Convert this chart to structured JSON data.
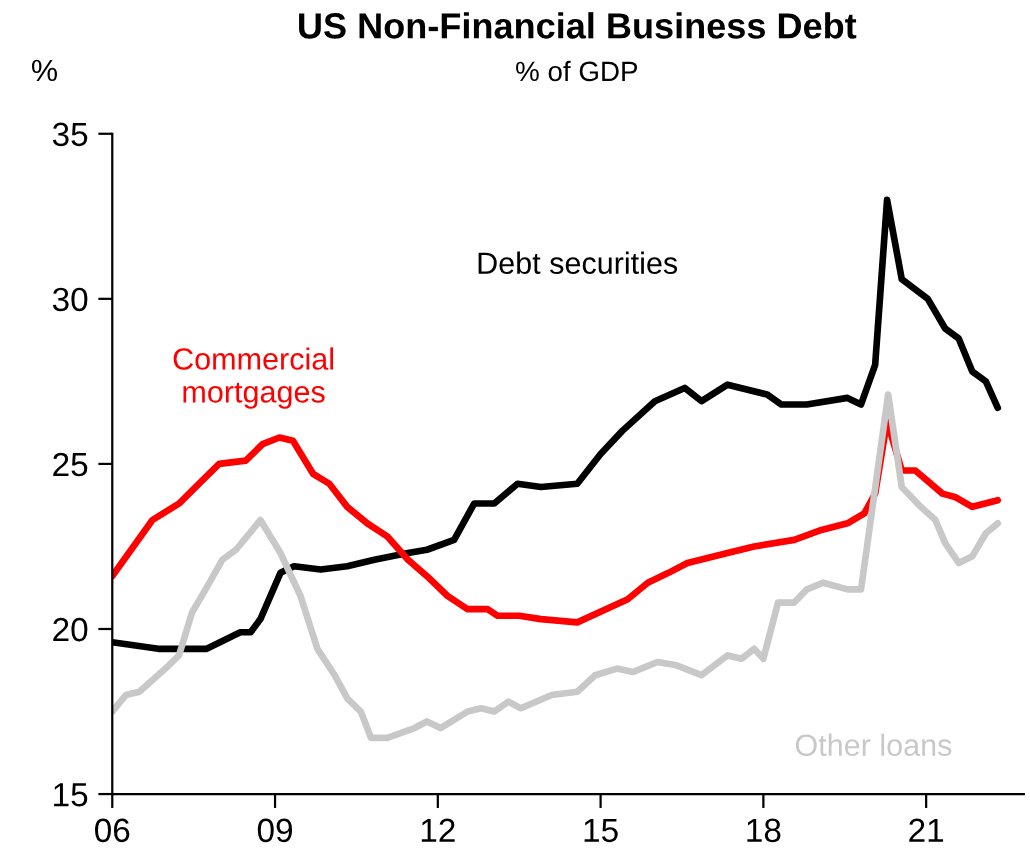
{
  "chart_data": {
    "type": "line",
    "title": "US Non-Financial Business Debt",
    "subtitle": "% of GDP",
    "ylabel": "%",
    "xlim": [
      2006,
      2022.8
    ],
    "xticks": [
      {
        "value": 2006,
        "label": "06"
      },
      {
        "value": 2009,
        "label": "09"
      },
      {
        "value": 2012,
        "label": "12"
      },
      {
        "value": 2015,
        "label": "15"
      },
      {
        "value": 2018,
        "label": "18"
      },
      {
        "value": 2021,
        "label": "21"
      }
    ],
    "ylim": [
      15,
      35
    ],
    "yticks": [
      15,
      20,
      25,
      30,
      35
    ],
    "grid": false,
    "legend": false,
    "series": [
      {
        "name": "Debt securities",
        "color": "#000000",
        "x": [
          2006.0,
          2006.85,
          2007.74,
          2008.36,
          2008.55,
          2008.73,
          2009.1,
          2009.35,
          2009.84,
          2010.33,
          2010.83,
          2011.45,
          2011.8,
          2012.3,
          2012.67,
          2013.04,
          2013.47,
          2013.9,
          2014.57,
          2015.0,
          2015.4,
          2016.0,
          2016.55,
          2016.86,
          2017.34,
          2018.07,
          2018.33,
          2018.8,
          2019.55,
          2019.8,
          2020.06,
          2020.28,
          2020.55,
          2021.03,
          2021.35,
          2021.6,
          2021.85,
          2022.1,
          2022.32
        ],
        "values": [
          19.6,
          19.4,
          19.4,
          19.9,
          19.9,
          20.3,
          21.7,
          21.9,
          21.8,
          21.9,
          22.1,
          22.3,
          22.4,
          22.7,
          23.8,
          23.8,
          24.4,
          24.3,
          24.4,
          25.3,
          26.0,
          26.9,
          27.3,
          26.9,
          27.4,
          27.1,
          26.8,
          26.8,
          27.0,
          26.8,
          28.0,
          33.0,
          30.6,
          30.0,
          29.1,
          28.8,
          27.8,
          27.5,
          26.7
        ]
      },
      {
        "name": "Commercial mortgages",
        "color": "#ff0000",
        "x": [
          2006.0,
          2006.74,
          2007.23,
          2007.6,
          2007.97,
          2008.46,
          2008.77,
          2009.08,
          2009.33,
          2009.7,
          2010.0,
          2010.33,
          2010.7,
          2011.07,
          2011.45,
          2011.8,
          2012.18,
          2012.55,
          2012.92,
          2013.1,
          2013.5,
          2013.9,
          2014.57,
          2015.5,
          2015.87,
          2016.25,
          2016.6,
          2017.34,
          2017.83,
          2018.57,
          2019.07,
          2019.55,
          2019.86,
          2020.06,
          2020.28,
          2020.55,
          2020.8,
          2021.3,
          2021.53,
          2021.85,
          2022.32
        ],
        "values": [
          21.6,
          23.3,
          23.8,
          24.4,
          25.0,
          25.1,
          25.6,
          25.8,
          25.7,
          24.7,
          24.4,
          23.7,
          23.2,
          22.8,
          22.1,
          21.6,
          21.0,
          20.6,
          20.6,
          20.4,
          20.4,
          20.3,
          20.2,
          20.9,
          21.4,
          21.7,
          22.0,
          22.3,
          22.5,
          22.7,
          23.0,
          23.2,
          23.5,
          24.1,
          26.3,
          24.8,
          24.8,
          24.1,
          24.0,
          23.7,
          23.9
        ]
      },
      {
        "name": "Other loans",
        "color": "#c8c8c8",
        "x": [
          2006.0,
          2006.25,
          2006.5,
          2006.98,
          2007.23,
          2007.47,
          2007.72,
          2008.03,
          2008.28,
          2008.73,
          2009.1,
          2009.47,
          2009.78,
          2010.1,
          2010.33,
          2010.58,
          2010.77,
          2011.07,
          2011.57,
          2011.8,
          2012.05,
          2012.55,
          2012.8,
          2013.04,
          2013.3,
          2013.53,
          2014.1,
          2014.57,
          2014.9,
          2015.3,
          2015.6,
          2016.05,
          2016.4,
          2016.86,
          2017.34,
          2017.6,
          2017.83,
          2018.0,
          2018.27,
          2018.57,
          2018.8,
          2019.1,
          2019.55,
          2019.8,
          2020.3,
          2020.55,
          2020.9,
          2021.17,
          2021.35,
          2021.6,
          2021.85,
          2022.1,
          2022.32
        ],
        "values": [
          17.5,
          18.0,
          18.1,
          18.8,
          19.2,
          20.5,
          21.2,
          22.1,
          22.4,
          23.3,
          22.3,
          21.0,
          19.4,
          18.6,
          17.9,
          17.5,
          16.7,
          16.7,
          17.0,
          17.2,
          17.0,
          17.5,
          17.6,
          17.5,
          17.8,
          17.6,
          18.0,
          18.1,
          18.6,
          18.8,
          18.7,
          19.0,
          18.9,
          18.6,
          19.2,
          19.1,
          19.4,
          19.1,
          20.8,
          20.8,
          21.2,
          21.4,
          21.2,
          21.2,
          27.1,
          24.3,
          23.7,
          23.3,
          22.6,
          22.0,
          22.2,
          22.9,
          23.2
        ]
      }
    ]
  }
}
